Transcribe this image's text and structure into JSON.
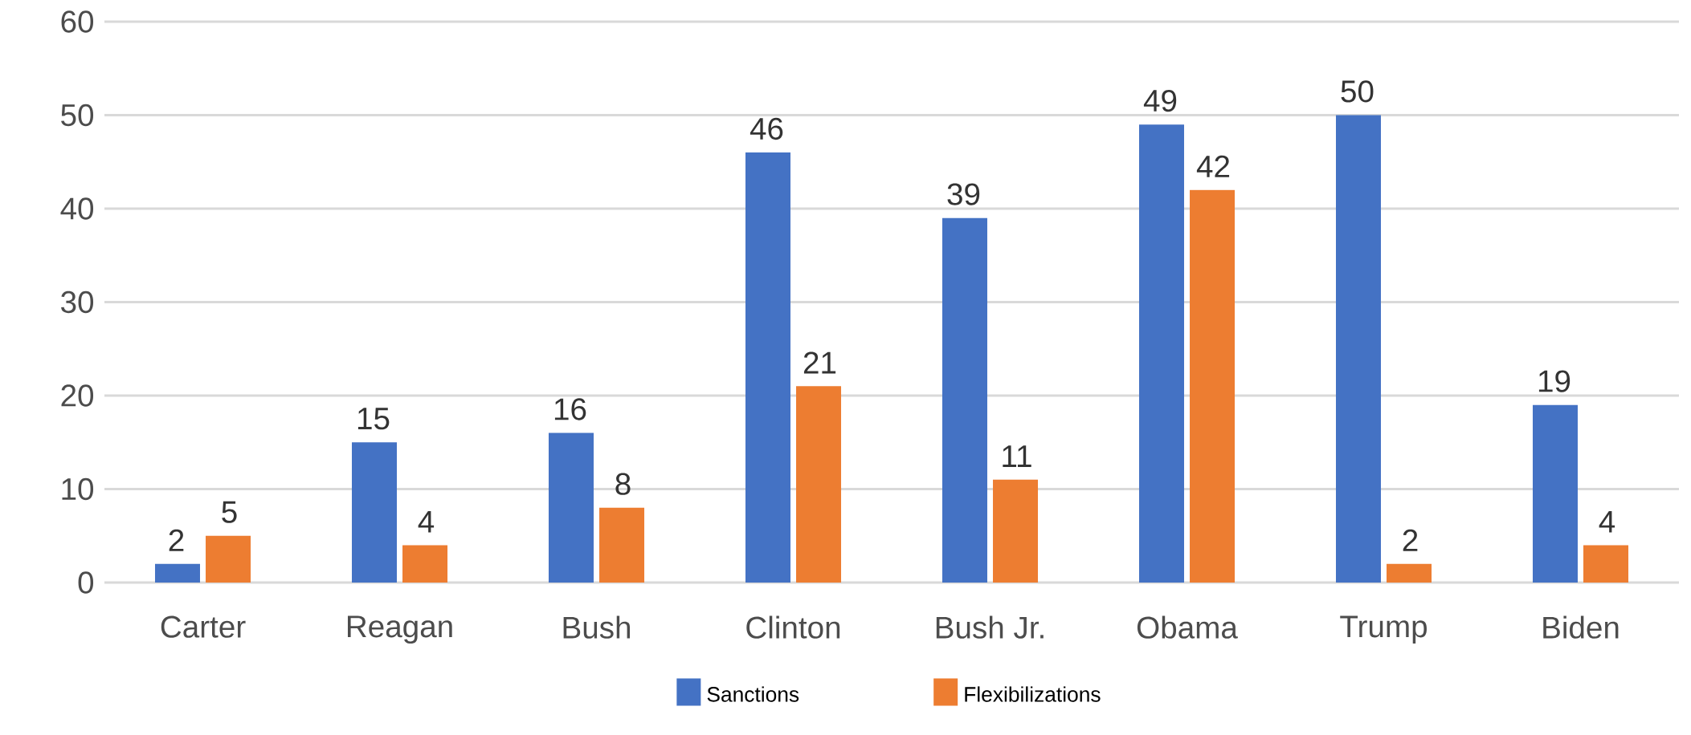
{
  "chart_data": {
    "type": "bar",
    "categories": [
      "Carter",
      "Reagan",
      "Bush",
      "Clinton",
      "Bush Jr.",
      "Obama",
      "Trump",
      "Biden"
    ],
    "series": [
      {
        "name": "Sanctions",
        "color": "#4472c4",
        "values": [
          2,
          15,
          16,
          46,
          39,
          49,
          50,
          19
        ]
      },
      {
        "name": "Flexibilizations",
        "color": "#ed7d31",
        "values": [
          5,
          4,
          8,
          21,
          11,
          42,
          2,
          4
        ]
      }
    ],
    "ylim": [
      0,
      60
    ],
    "yticks": [
      0,
      10,
      20,
      30,
      40,
      50,
      60
    ],
    "grid": "y",
    "legend": "bottom",
    "data_labels": true
  }
}
